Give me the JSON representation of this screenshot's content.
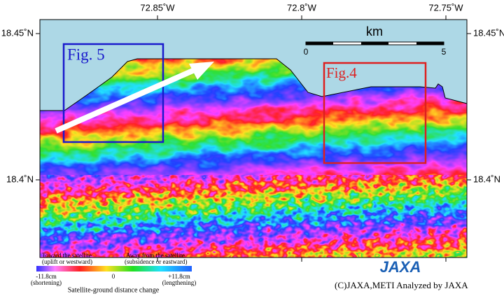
{
  "map": {
    "x_labels": [
      "72.85˚W",
      "72.8˚W",
      "72.75˚W"
    ],
    "y_labels": [
      "18.45˚N",
      "18.4˚N"
    ],
    "scale_bar": {
      "unit": "km",
      "start": "0",
      "end": "5"
    },
    "figures": [
      {
        "label": "Fig. 5"
      },
      {
        "label": "Fig.4"
      }
    ]
  },
  "legend": {
    "left_title": "Toward the satellite",
    "left_sub": "(uplift or westward)",
    "right_title": "Away from the satellite",
    "right_sub": "(subsidence or eastward)",
    "min_label": "-11.8cm",
    "min_sub": "(shortening)",
    "mid_label": "0",
    "max_label": "+11.8cm",
    "max_sub": "(lengthening)",
    "caption": "Satellite-ground distance change"
  },
  "logo": "JAXA",
  "credit": "(C)JAXA,METI Analyzed by JAXA"
}
